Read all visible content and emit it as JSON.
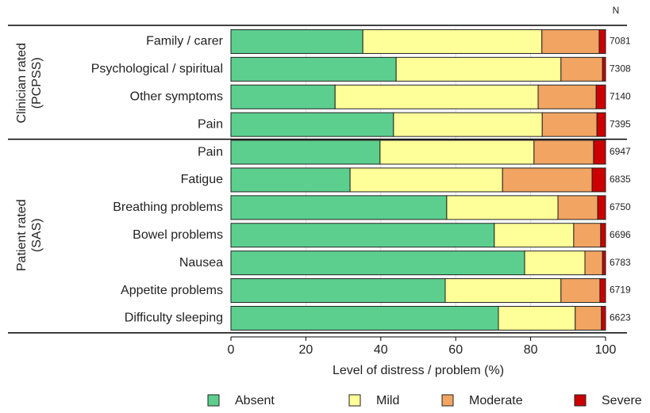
{
  "chart_data": {
    "type": "stacked-barh",
    "categories": [
      "Family / carer",
      "Psychological / spiritual",
      "Other symptoms",
      "Pain",
      "Pain",
      "Fatigue",
      "Breathing problems",
      "Bowel problems",
      "Nausea",
      "Appetite problems",
      "Difficulty sleeping"
    ],
    "groups": [
      {
        "label": [
          "Clinician rated",
          "(PCPSS)"
        ],
        "rows": [
          0,
          3
        ]
      },
      {
        "label": [
          "Patient rated",
          "(SAS)"
        ],
        "rows": [
          4,
          10
        ]
      }
    ],
    "series": [
      {
        "name": "Absent",
        "color": "#5ccf8f",
        "values": [
          35.2,
          44.1,
          27.8,
          43.4,
          39.8,
          31.8,
          57.6,
          70.3,
          78.4,
          57.2,
          71.4
        ]
      },
      {
        "name": "Mild",
        "color": "#ffff99",
        "values": [
          47.8,
          44.0,
          54.2,
          39.7,
          41.1,
          40.7,
          29.7,
          21.2,
          16.1,
          30.9,
          20.5
        ]
      },
      {
        "name": "Moderate",
        "color": "#f2a462",
        "values": [
          15.3,
          11.1,
          15.5,
          14.6,
          15.9,
          23.9,
          10.6,
          7.2,
          4.7,
          10.4,
          7.0
        ]
      },
      {
        "name": "Severe",
        "color": "#cc0000",
        "values": [
          1.7,
          0.8,
          2.5,
          2.3,
          3.2,
          3.6,
          2.1,
          1.3,
          0.8,
          1.5,
          1.1
        ]
      }
    ],
    "n_header": "N",
    "n": [
      7081,
      7308,
      7140,
      7395,
      6947,
      6835,
      6750,
      6696,
      6783,
      6719,
      6623
    ],
    "xlabel": "Level of distress / problem (%)",
    "xlim": [
      0,
      100
    ],
    "xticks": [
      0,
      20,
      40,
      60,
      80,
      100
    ],
    "grid": true
  }
}
